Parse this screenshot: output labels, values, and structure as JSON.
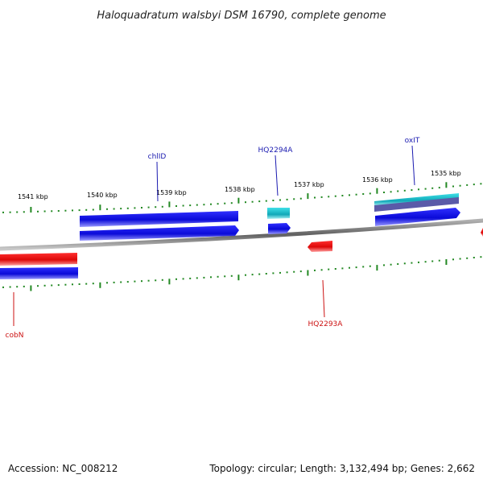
{
  "title": "Haloquadratum walsbyi DSM 16790, complete genome",
  "footer": {
    "accession": "Accession: NC_008212",
    "summary": "Topology: circular; Length: 3,132,494 bp; Genes: 2,662"
  },
  "ticks": [
    {
      "label": "1541 kbp",
      "kbp": 1541
    },
    {
      "label": "1540 kbp",
      "kbp": 1540
    },
    {
      "label": "1539 kbp",
      "kbp": 1539
    },
    {
      "label": "1538 kbp",
      "kbp": 1538
    },
    {
      "label": "1537 kbp",
      "kbp": 1537
    },
    {
      "label": "1536 kbp",
      "kbp": 1536
    },
    {
      "label": "1535 kbp",
      "kbp": 1535
    }
  ],
  "gene_labels": [
    {
      "name": "chlID",
      "strand": "forward"
    },
    {
      "name": "HQ2294A",
      "strand": "forward"
    },
    {
      "name": "oxIT",
      "strand": "forward"
    },
    {
      "name": "cobN",
      "strand": "reverse"
    },
    {
      "name": "HQ2293A",
      "strand": "reverse"
    }
  ],
  "colors": {
    "forward_gene": "#1010e0",
    "reverse_gene": "#e81010",
    "rna_gene": "#19b8c8",
    "tick": "#228822",
    "backbone": "#808080"
  }
}
